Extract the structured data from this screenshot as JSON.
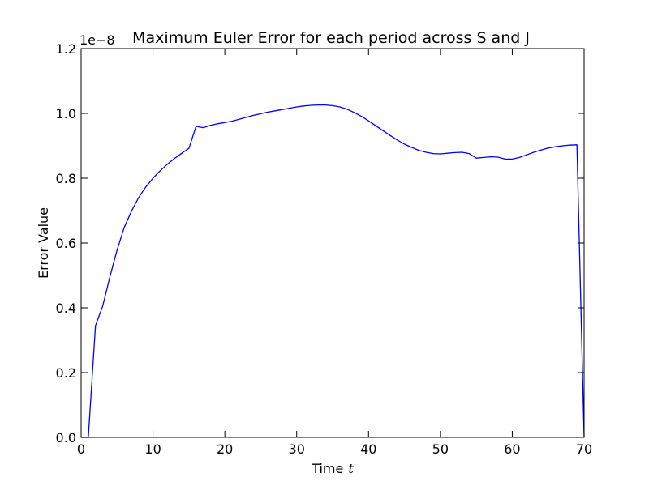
{
  "chart_data": {
    "type": "line",
    "title": "Maximum Euler Error for each period across S and J",
    "xlabel": "Time",
    "xlabel_var": "t",
    "ylabel": "Error Value",
    "y_offset_label": "1e−8",
    "xlim": [
      0,
      70
    ],
    "ylim": [
      0,
      1.2
    ],
    "xticks": [
      0,
      10,
      20,
      30,
      40,
      50,
      60,
      70
    ],
    "xtick_labels": [
      "0",
      "10",
      "20",
      "30",
      "40",
      "50",
      "60",
      "70"
    ],
    "yticks": [
      0,
      0.2,
      0.4,
      0.6,
      0.8,
      1.0,
      1.2
    ],
    "ytick_labels": [
      "0.0",
      "0.2",
      "0.4",
      "0.6",
      "0.8",
      "1.0",
      "1.2"
    ],
    "grid": false,
    "series": [
      {
        "color": "#0000ff",
        "x": [
          0,
          1,
          2,
          3,
          4,
          5,
          6,
          7,
          8,
          9,
          10,
          11,
          12,
          13,
          14,
          15,
          16,
          17,
          18,
          19,
          20,
          21,
          22,
          23,
          24,
          25,
          26,
          27,
          28,
          29,
          30,
          31,
          32,
          33,
          34,
          35,
          36,
          37,
          38,
          39,
          40,
          41,
          42,
          43,
          44,
          45,
          46,
          47,
          48,
          49,
          50,
          51,
          52,
          53,
          54,
          55,
          56,
          57,
          58,
          59,
          60,
          61,
          62,
          63,
          64,
          65,
          66,
          67,
          68,
          69,
          70
        ],
        "y": [
          0.0,
          0.0,
          0.345,
          0.405,
          0.495,
          0.578,
          0.648,
          0.698,
          0.74,
          0.773,
          0.8,
          0.823,
          0.843,
          0.861,
          0.877,
          0.892,
          0.96,
          0.956,
          0.963,
          0.968,
          0.972,
          0.976,
          0.982,
          0.988,
          0.994,
          0.999,
          1.004,
          1.008,
          1.012,
          1.016,
          1.02,
          1.023,
          1.025,
          1.026,
          1.026,
          1.024,
          1.02,
          1.013,
          1.003,
          0.991,
          0.977,
          0.962,
          0.947,
          0.932,
          0.918,
          0.905,
          0.895,
          0.886,
          0.88,
          0.876,
          0.875,
          0.877,
          0.879,
          0.88,
          0.876,
          0.862,
          0.864,
          0.866,
          0.865,
          0.859,
          0.859,
          0.864,
          0.872,
          0.88,
          0.887,
          0.893,
          0.897,
          0.9,
          0.902,
          0.903,
          0.0
        ]
      }
    ]
  }
}
